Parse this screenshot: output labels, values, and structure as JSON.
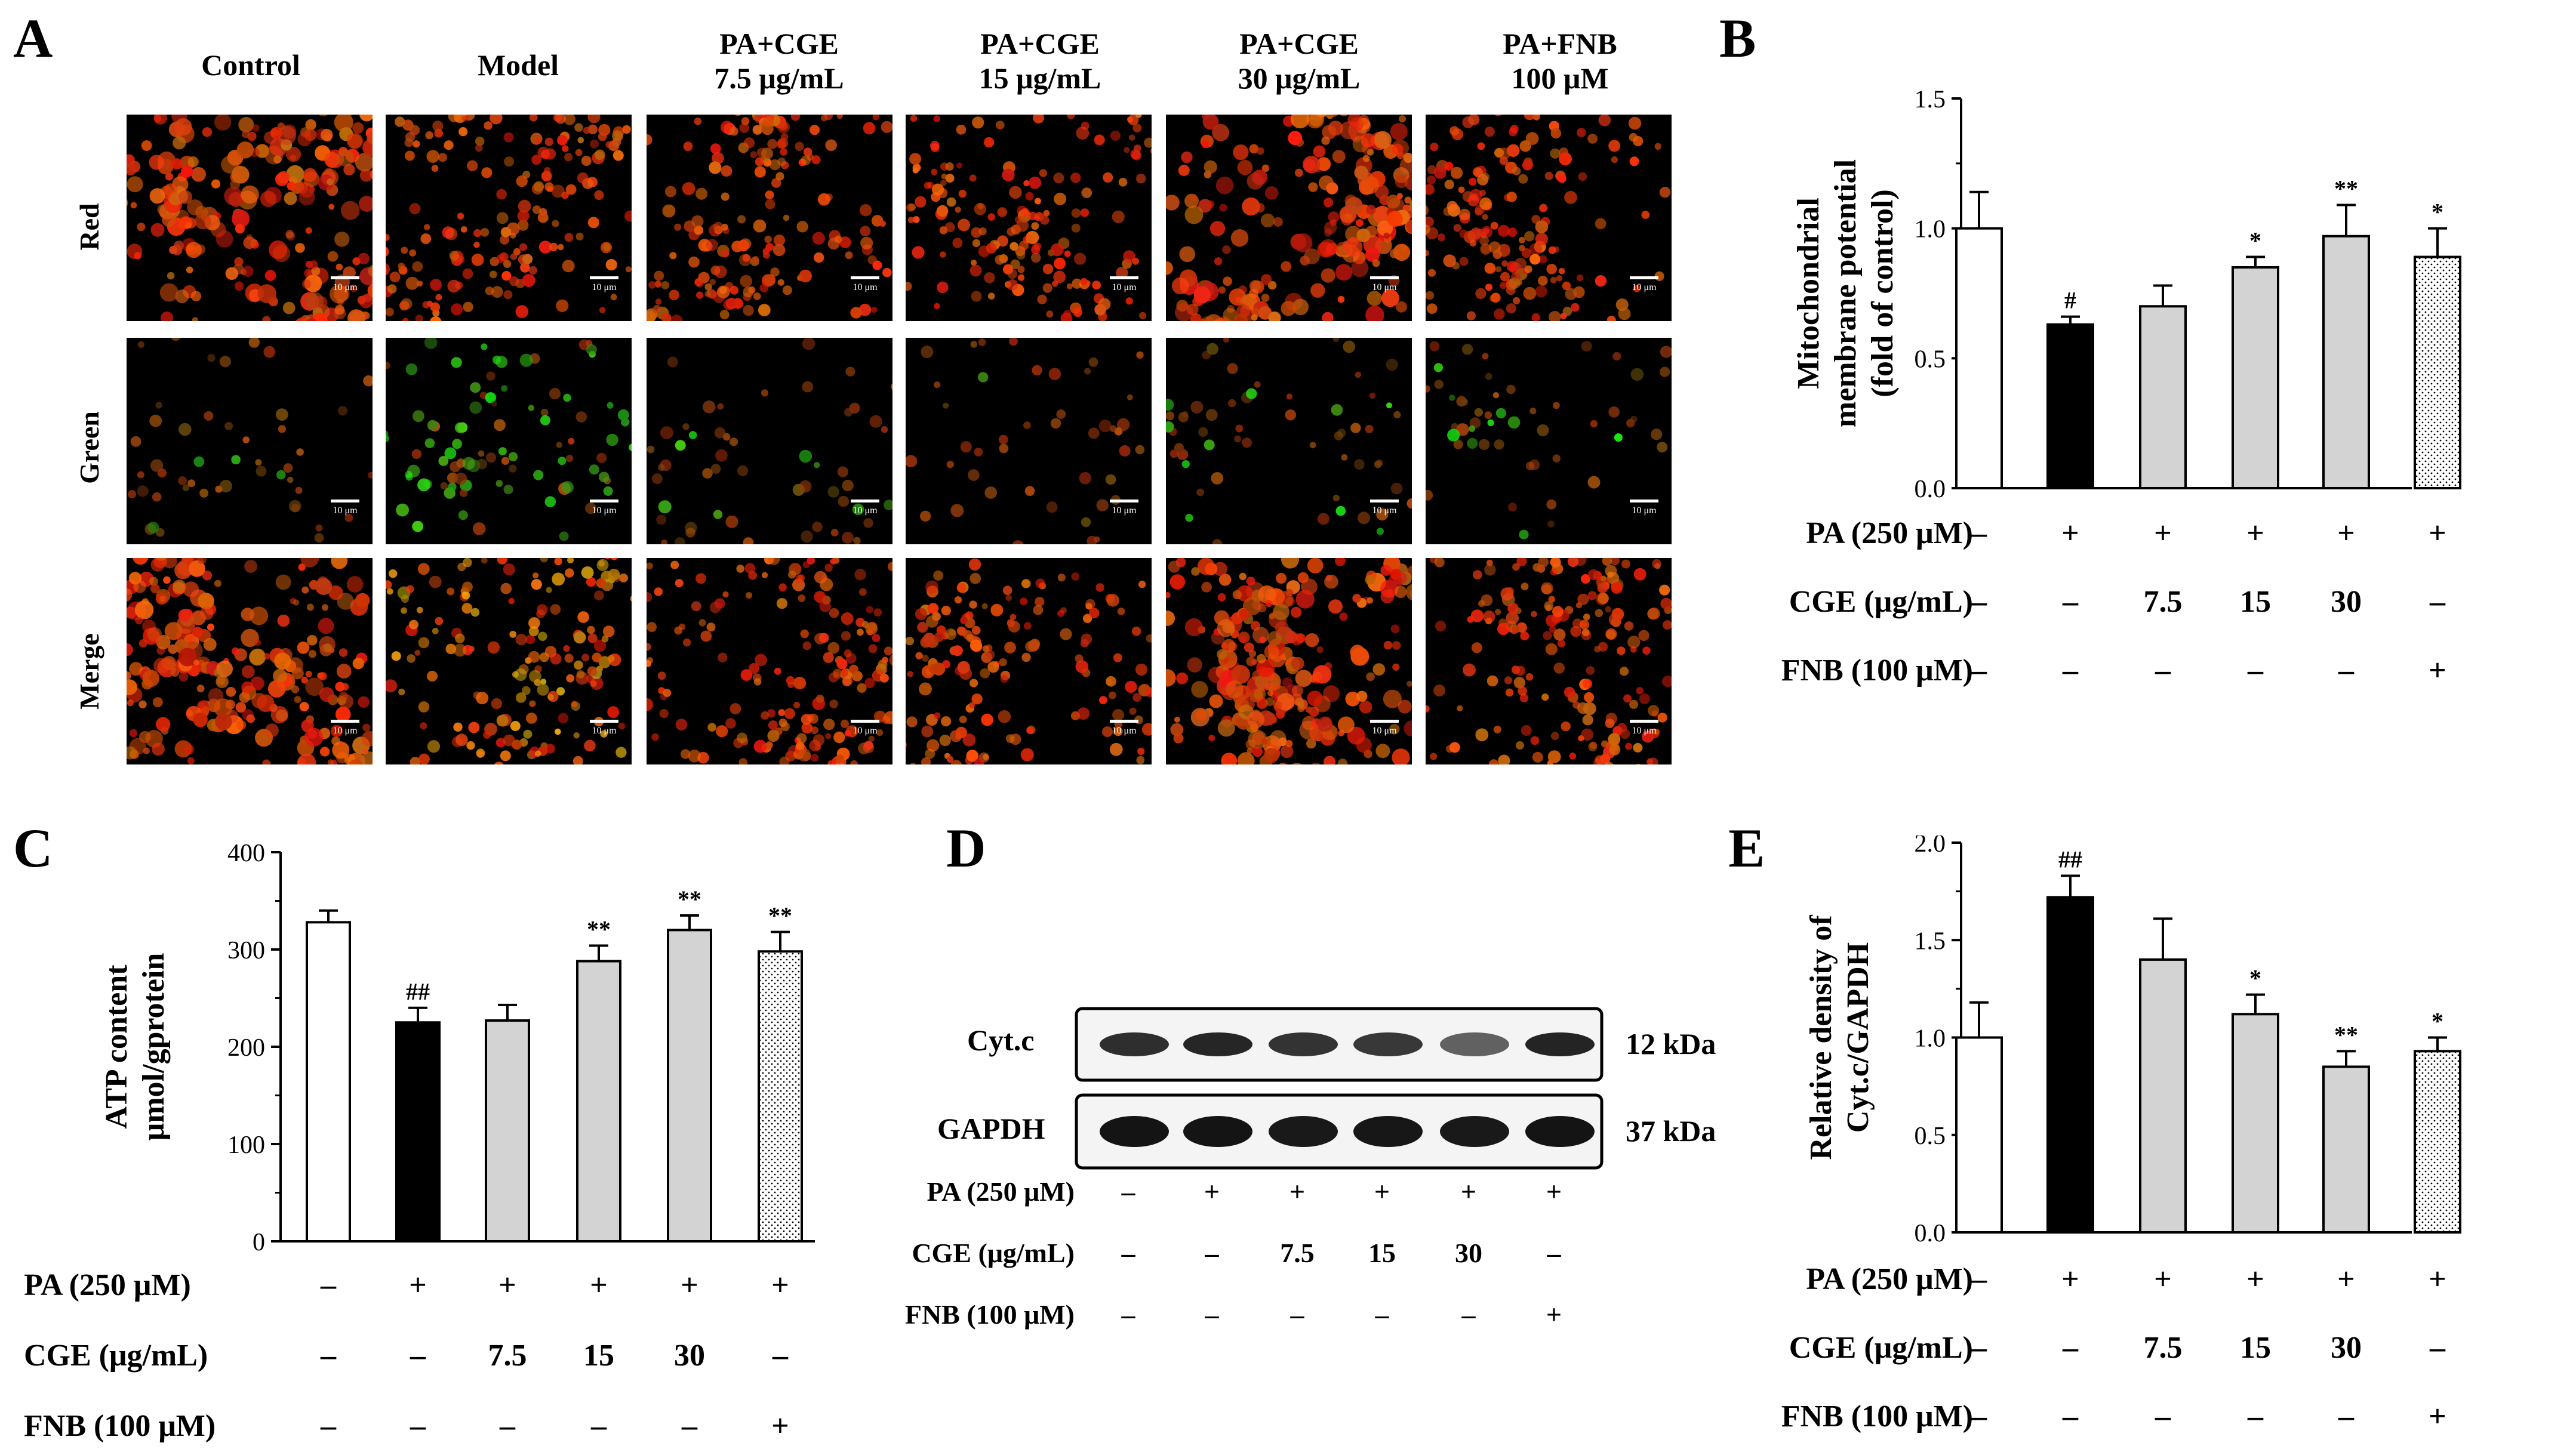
{
  "panel_labels": {
    "a": "A",
    "b": "B",
    "c": "C",
    "d": "D",
    "e": "E"
  },
  "panelA": {
    "columns": [
      {
        "line1": "Control",
        "line2": ""
      },
      {
        "line1": "Model",
        "line2": ""
      },
      {
        "line1": "PA+CGE",
        "line2": "7.5 μg/mL"
      },
      {
        "line1": "PA+CGE",
        "line2": "15 μg/mL"
      },
      {
        "line1": "PA+CGE",
        "line2": "30 μg/mL"
      },
      {
        "line1": "PA+FNB",
        "line2": "100 μM"
      }
    ],
    "rows": [
      "Red",
      "Green",
      "Merge"
    ],
    "scale_label": "10 μm"
  },
  "treatment_rows": [
    {
      "label": "PA (250 μM)",
      "values": [
        "–",
        "+",
        "+",
        "+",
        "+",
        "+"
      ]
    },
    {
      "label": "CGE (μg/mL)",
      "values": [
        "–",
        "–",
        "7.5",
        "15",
        "30",
        "–"
      ]
    },
    {
      "label": "FNB (100 μM)",
      "values": [
        "–",
        "–",
        "–",
        "–",
        "–",
        "+"
      ]
    }
  ],
  "chart_data": [
    {
      "panel": "B",
      "type": "bar",
      "ylabel_lines": [
        "Mitochondrial",
        "membrane potential",
        "(fold of control)"
      ],
      "ylim": [
        0,
        1.5
      ],
      "yticks": [
        "0.0",
        "0.5",
        "1.0",
        "1.5"
      ],
      "values": [
        1.0,
        0.63,
        0.7,
        0.85,
        0.97,
        0.89
      ],
      "errors": [
        0.14,
        0.03,
        0.08,
        0.04,
        0.12,
        0.11
      ],
      "significance": [
        "",
        "#",
        "",
        "*",
        "**",
        "*"
      ],
      "fills": [
        "#ffffff",
        "#000000",
        "#d3d3d3",
        "#d3d3d3",
        "#d3d3d3",
        "dots"
      ]
    },
    {
      "panel": "C",
      "type": "bar",
      "ylabel_lines": [
        "ATP content",
        "μmol/gprotein"
      ],
      "ylim": [
        0,
        400
      ],
      "yticks": [
        "0",
        "100",
        "200",
        "300",
        "400"
      ],
      "values": [
        328,
        225,
        227,
        288,
        320,
        298
      ],
      "errors": [
        12,
        15,
        16,
        16,
        15,
        20
      ],
      "significance": [
        "",
        "##",
        "",
        "**",
        "**",
        "**"
      ],
      "fills": [
        "#ffffff",
        "#000000",
        "#d3d3d3",
        "#d3d3d3",
        "#d3d3d3",
        "dots"
      ]
    },
    {
      "panel": "E",
      "type": "bar",
      "ylabel_lines": [
        "Relative density of",
        "Cyt.c/GAPDH"
      ],
      "ylim": [
        0,
        2.0
      ],
      "yticks": [
        "0.0",
        "0.5",
        "1.0",
        "1.5",
        "2.0"
      ],
      "values": [
        1.0,
        1.72,
        1.4,
        1.12,
        0.85,
        0.93
      ],
      "errors": [
        0.18,
        0.11,
        0.21,
        0.1,
        0.08,
        0.07
      ],
      "significance": [
        "",
        "##",
        "",
        "*",
        "**",
        "*"
      ],
      "fills": [
        "#ffffff",
        "#000000",
        "#d3d3d3",
        "#d3d3d3",
        "#d3d3d3",
        "dots"
      ]
    }
  ],
  "panelD": {
    "bands": [
      {
        "name": "Cyt.c",
        "size": "12 kDa",
        "intensity": [
          0.82,
          0.85,
          0.8,
          0.78,
          0.62,
          0.86
        ]
      },
      {
        "name": "GAPDH",
        "size": "37 kDa",
        "intensity": [
          0.92,
          0.92,
          0.9,
          0.91,
          0.9,
          0.92
        ]
      }
    ]
  }
}
